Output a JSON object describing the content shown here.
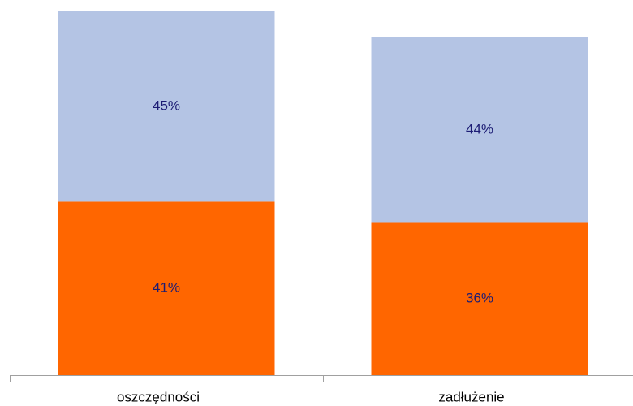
{
  "chart_data": {
    "type": "stacked_bar",
    "categories": [
      "oszczędności",
      "zadłużenie"
    ],
    "series": [
      {
        "color": "#ff6600",
        "values": [
          41,
          36
        ],
        "value_labels": [
          "41%",
          "36%"
        ]
      },
      {
        "color": "#b4c4e4",
        "values": [
          45,
          44
        ],
        "value_labels": [
          "45%",
          "44%"
        ]
      }
    ],
    "ylim": [
      0,
      86
    ]
  }
}
